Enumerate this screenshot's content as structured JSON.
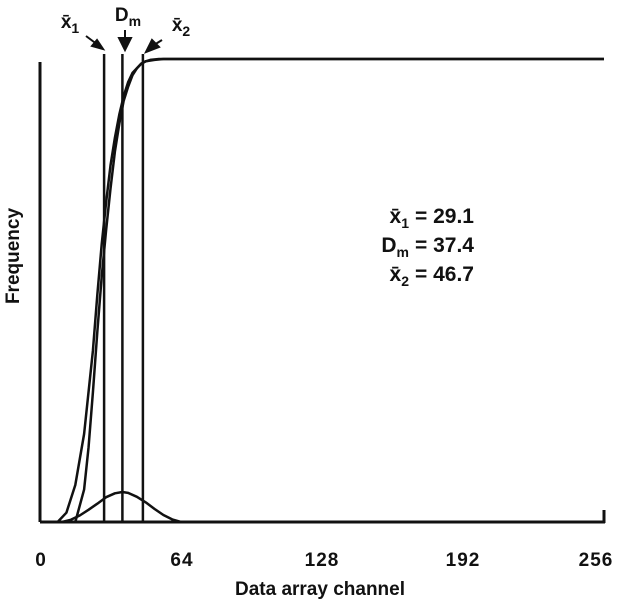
{
  "chart_data": {
    "type": "line",
    "xlabel": "Data array channel",
    "ylabel": "Frequency",
    "xlim": [
      0,
      256
    ],
    "x_ticks": [
      "0",
      "64",
      "128",
      "192",
      "256"
    ],
    "grid": false,
    "series": [
      {
        "kind": "cumulative",
        "x": [
          8,
          12,
          16,
          20,
          24,
          26,
          28,
          30,
          32,
          34,
          36,
          38,
          40,
          42,
          44,
          46,
          48,
          52,
          56,
          60,
          64,
          256
        ],
        "y": [
          0.0,
          0.02,
          0.08,
          0.19,
          0.37,
          0.49,
          0.6,
          0.69,
          0.77,
          0.83,
          0.88,
          0.92,
          0.95,
          0.97,
          0.98,
          0.99,
          0.995,
          0.998,
          1.0,
          1.0,
          1.0,
          1.0
        ]
      },
      {
        "kind": "cumulative",
        "x": [
          16,
          20,
          22,
          24,
          26,
          28,
          30,
          32,
          34,
          36,
          38,
          40,
          42,
          44,
          46,
          48,
          50,
          54,
          58,
          62,
          64,
          256
        ],
        "y": [
          0.0,
          0.07,
          0.16,
          0.28,
          0.41,
          0.53,
          0.63,
          0.72,
          0.8,
          0.86,
          0.91,
          0.94,
          0.965,
          0.98,
          0.99,
          0.995,
          0.998,
          1.0,
          1.0,
          1.0,
          1.0,
          1.0
        ]
      },
      {
        "kind": "frequency",
        "x": [
          10,
          14,
          18,
          22,
          26,
          30,
          34,
          37.4,
          40,
          44,
          48,
          52,
          56,
          60,
          64
        ],
        "y": [
          0.0,
          0.005,
          0.015,
          0.028,
          0.042,
          0.057,
          0.066,
          0.069,
          0.067,
          0.058,
          0.045,
          0.03,
          0.016,
          0.006,
          0.0
        ]
      }
    ],
    "reference_lines": [
      {
        "label": "x̄",
        "subscript": "1",
        "x": 29.1
      },
      {
        "label": "D",
        "subscript": "m",
        "x": 37.4
      },
      {
        "label": "x̄",
        "subscript": "2",
        "x": 46.7
      }
    ],
    "annotations": [
      {
        "label": "x̄",
        "subscript": "1",
        "value": "= 29.1"
      },
      {
        "label": "D",
        "subscript": "m",
        "value": "= 37.4"
      },
      {
        "label": "x̄",
        "subscript": "2",
        "value": "= 46.7"
      }
    ],
    "colors": {
      "ink": "#111111",
      "background": "#ffffff"
    }
  }
}
